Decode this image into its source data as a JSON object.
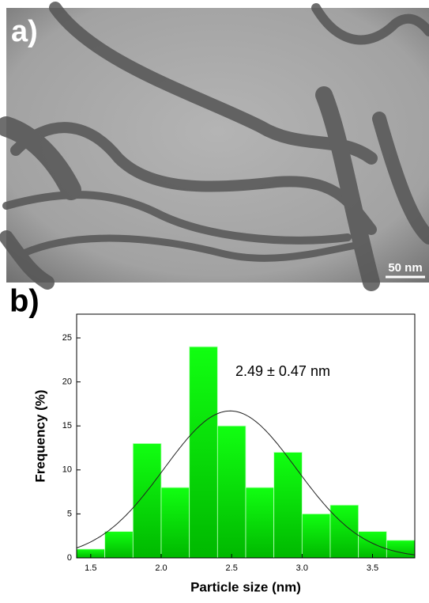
{
  "panel_a": {
    "label": "a)",
    "scale_bar": "50 nm"
  },
  "chart_data": {
    "type": "histogram",
    "panel_label": "b)",
    "xlabel": "Particle size (nm)",
    "ylabel": "Frequency (%)",
    "annotation": "2.49 ± 0.47 nm",
    "bins": [
      1.4,
      1.6,
      1.8,
      2.0,
      2.2,
      2.4,
      2.6,
      2.8,
      3.0,
      3.2,
      3.4,
      3.6,
      3.8
    ],
    "values": [
      1,
      3,
      13,
      8,
      24,
      15,
      8,
      12,
      5,
      6,
      3,
      2
    ],
    "color": "#00ee00",
    "fit": {
      "mean": 2.49,
      "sd": 0.47,
      "peak": 16.7,
      "color": "#222222"
    },
    "xlim": [
      1.4,
      3.8
    ],
    "ylim": [
      0,
      27.7
    ],
    "xticks": [
      1.5,
      {
        "value": 2.0,
        "label": "2.0"
      },
      2.5,
      {
        "value": 3.0,
        "label": "3.0"
      },
      3.5
    ],
    "yticks": [
      0,
      5,
      10,
      15,
      20,
      25
    ]
  }
}
